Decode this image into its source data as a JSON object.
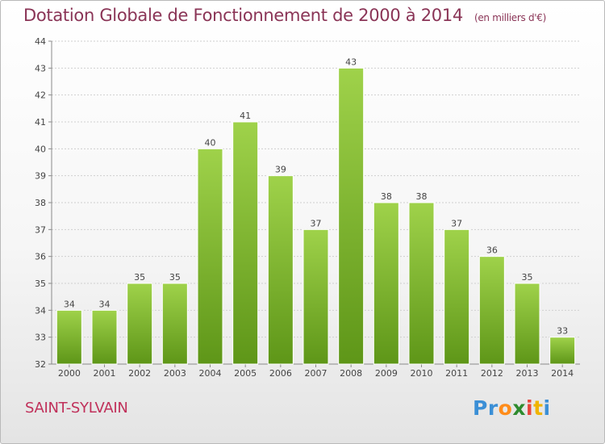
{
  "title": "Dotation Globale de Fonctionnement de 2000 à 2014",
  "subtitle": "(en milliers d'€)",
  "commune": "SAINT-SYLVAIN",
  "brand": {
    "letters": [
      "P",
      "r",
      "o",
      "x",
      "i",
      "t",
      "i"
    ],
    "colors": [
      "#3b8fd6",
      "#3b8fd6",
      "#ff8c1a",
      "#2e8b2e",
      "#e8453c",
      "#f0b400",
      "#3b8fd6"
    ]
  },
  "colors": {
    "title": "#8a3456",
    "commune": "#c0305a",
    "bar_top": "#9fd24a",
    "bar_bottom": "#5e9618"
  },
  "chart_data": {
    "type": "bar",
    "title": "Dotation Globale de Fonctionnement de 2000 à 2014",
    "subtitle": "(en milliers d'€)",
    "categories": [
      "2000",
      "2001",
      "2002",
      "2003",
      "2004",
      "2005",
      "2006",
      "2007",
      "2008",
      "2009",
      "2010",
      "2011",
      "2012",
      "2013",
      "2014"
    ],
    "values": [
      34,
      34,
      35,
      35,
      40,
      41,
      39,
      37,
      43,
      38,
      38,
      37,
      36,
      35,
      33
    ],
    "data_labels": [
      "34",
      "34",
      "35",
      "35",
      "40",
      "41",
      "39",
      "37",
      "43",
      "38",
      "38",
      "37",
      "36",
      "35",
      "33"
    ],
    "ylim": [
      32,
      44
    ],
    "yticks": [
      32,
      33,
      34,
      35,
      36,
      37,
      38,
      39,
      40,
      41,
      42,
      43,
      44
    ],
    "grid": true,
    "xlabel": "",
    "ylabel": ""
  }
}
